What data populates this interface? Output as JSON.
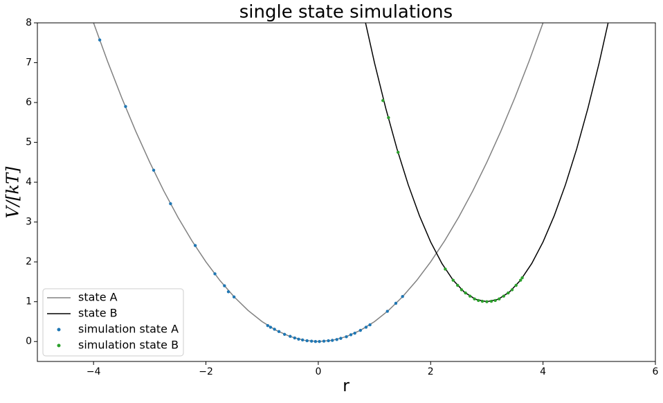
{
  "chart_data": {
    "type": "line",
    "title": "single state simulations",
    "xlabel": "r",
    "ylabel": "V/[kT]",
    "xlim": [
      -5,
      6
    ],
    "ylim": [
      -0.5,
      8
    ],
    "xticks": [
      {
        "value": -4,
        "label": "−4"
      },
      {
        "value": -2,
        "label": "−2"
      },
      0,
      2,
      4,
      6
    ],
    "yticks": [
      0,
      1,
      2,
      3,
      4,
      5,
      6,
      7,
      8
    ],
    "grid": false,
    "legend": "lower left",
    "series": [
      {
        "name": "state A",
        "type": "line",
        "color": "#808080",
        "x": [
          -4,
          -3.75,
          -3.5,
          -3.25,
          -3,
          -2.75,
          -2.5,
          -2.25,
          -2,
          -1.75,
          -1.5,
          -1.25,
          -1,
          -0.75,
          -0.5,
          -0.25,
          0,
          0.25,
          0.5,
          0.75,
          1,
          1.25,
          1.5,
          1.75,
          2,
          2.25,
          2.5,
          2.75,
          3,
          3.25,
          3.5,
          3.75,
          4
        ],
        "values": [
          8,
          7.03125,
          6.125,
          5.28125,
          4.5,
          3.78125,
          3.125,
          2.53125,
          2,
          1.53125,
          1.125,
          0.78125,
          0.5,
          0.28125,
          0.125,
          0.03125,
          0,
          0.03125,
          0.125,
          0.28125,
          0.5,
          0.78125,
          1.125,
          1.53125,
          2,
          2.53125,
          3.125,
          3.78125,
          4.5,
          5.28125,
          6.125,
          7.03125,
          8
        ]
      },
      {
        "name": "state B",
        "type": "line",
        "color": "#000000",
        "x": [
          0.8,
          1.0,
          1.2,
          1.4,
          1.6,
          1.8,
          2.0,
          2.2,
          2.4,
          2.6,
          2.8,
          3.0,
          3.2,
          3.4,
          3.6,
          3.8,
          4.0,
          4.2,
          4.4,
          4.6,
          4.8,
          5.0,
          5.2
        ],
        "values": [
          8.26,
          7,
          5.86,
          4.84,
          3.94,
          3.16,
          2.5,
          1.96,
          1.54,
          1.24,
          1.06,
          1,
          1.06,
          1.24,
          1.54,
          1.96,
          2.5,
          3.16,
          3.94,
          4.84,
          5.86,
          7,
          8.26
        ]
      },
      {
        "name": "simulation state A",
        "type": "scatter",
        "color": "#1f77b4",
        "x": [
          -3.89,
          -3.43,
          -2.93,
          -2.63,
          -2.19,
          -1.84,
          -1.67,
          -1.6,
          -1.5,
          -0.9,
          -0.85,
          -0.78,
          -0.7,
          -0.6,
          -0.5,
          -0.42,
          -0.35,
          -0.28,
          -0.2,
          -0.12,
          -0.05,
          0.02,
          0.1,
          0.18,
          0.25,
          0.33,
          0.4,
          0.5,
          0.58,
          0.65,
          0.75,
          0.85,
          0.92,
          1.23,
          1.38,
          1.5
        ],
        "values": [
          7.57,
          5.9,
          4.3,
          3.46,
          2.41,
          1.7,
          1.4,
          1.25,
          1.12,
          0.4,
          0.36,
          0.31,
          0.25,
          0.18,
          0.13,
          0.09,
          0.06,
          0.04,
          0.02,
          0.01,
          0,
          0,
          0.01,
          0.02,
          0.03,
          0.05,
          0.08,
          0.12,
          0.17,
          0.21,
          0.28,
          0.36,
          0.42,
          0.76,
          0.96,
          1.13
        ]
      },
      {
        "name": "simulation state B",
        "type": "scatter",
        "color": "#2ca02c",
        "x": [
          1.15,
          1.25,
          1.42,
          2.26,
          2.4,
          2.48,
          2.55,
          2.62,
          2.7,
          2.78,
          2.85,
          2.92,
          3.0,
          3.08,
          3.15,
          3.22,
          3.3,
          3.38,
          3.45,
          3.52,
          3.6,
          3.63
        ],
        "values": [
          6.05,
          5.62,
          4.75,
          1.82,
          1.54,
          1.41,
          1.3,
          1.22,
          1.14,
          1.07,
          1.03,
          1.01,
          1.0,
          1.01,
          1.03,
          1.07,
          1.14,
          1.22,
          1.3,
          1.41,
          1.54,
          1.6
        ]
      }
    ]
  }
}
